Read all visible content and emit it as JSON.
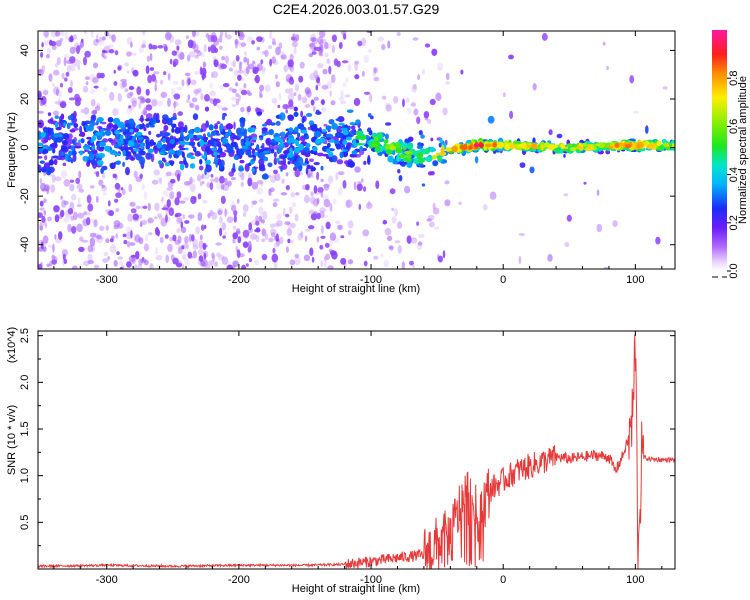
{
  "title": "C2E4.2026.003.01.57.G29",
  "colors": {
    "snr_line": "#e8393a",
    "axes": "#000000",
    "background": "#ffffff"
  },
  "chart_data": [
    {
      "type": "heatmap",
      "name": "spectrogram",
      "xlabel": "Height of straight line (km)",
      "ylabel": "Frequency (Hz)",
      "xlim": [
        -352,
        130
      ],
      "ylim": [
        -50,
        48
      ],
      "xticks": [
        -300,
        -200,
        -100,
        0,
        100
      ],
      "xtick_labels": [
        "-300",
        "-200",
        "-100",
        "0",
        "100"
      ],
      "yticks": [
        -40,
        -20,
        0,
        20,
        40
      ],
      "ytick_labels": [
        "-40",
        "-20",
        "0",
        "20",
        "40"
      ],
      "colorbar": {
        "label": "Normalized spectral amplitude",
        "range": [
          0,
          1
        ],
        "ticks": [
          0.0,
          0.2,
          0.4,
          0.6,
          0.8
        ],
        "tick_labels": [
          "0.0",
          "0.2",
          "0.4",
          "0.6",
          "0.8"
        ],
        "colormap": "rainbow (white-violet-blue-cyan-green-yellow-red-magenta)"
      },
      "signal_track": {
        "description": "Carrier frequency track vs height; noisy broadband below about -120 km, concentrating into a narrow high-amplitude line above about -45 km",
        "height_km": [
          -352,
          -300,
          -250,
          -200,
          -150,
          -120,
          -100,
          -80,
          -60,
          -50,
          -40,
          -30,
          -20,
          0,
          50,
          100,
          130
        ],
        "center_hz": [
          2,
          2,
          2,
          2,
          2,
          4,
          3,
          -1,
          -4,
          -2,
          0,
          0,
          1,
          1,
          0,
          1,
          1
        ],
        "peak_amplitude": [
          0.35,
          0.35,
          0.35,
          0.35,
          0.4,
          0.5,
          0.55,
          0.6,
          0.5,
          0.7,
          0.75,
          0.85,
          0.9,
          0.75,
          0.7,
          0.8,
          0.7
        ]
      }
    },
    {
      "type": "line",
      "name": "snr",
      "xlabel": "Height of straight line (km)",
      "ylabel": "SNR (10 * v/v)",
      "y_scale_label": "(x10^4)",
      "xlim": [
        -352,
        130
      ],
      "ylim": [
        0,
        2.55
      ],
      "xticks": [
        -300,
        -200,
        -100,
        0,
        100
      ],
      "xtick_labels": [
        "-300",
        "-200",
        "-100",
        "0",
        "100"
      ],
      "yticks": [
        0.5,
        1.0,
        1.5,
        2.0,
        2.5
      ],
      "ytick_labels": [
        "0.5",
        "1.0",
        "1.5",
        "2.0",
        "2.5"
      ],
      "series": [
        {
          "name": "SNR",
          "x": [
            -352,
            -300,
            -250,
            -200,
            -150,
            -120,
            -100,
            -80,
            -60,
            -50,
            -40,
            -35,
            -30,
            -25,
            -20,
            -15,
            -10,
            -5,
            0,
            10,
            20,
            30,
            40,
            50,
            60,
            70,
            80,
            85,
            90,
            95,
            98,
            100,
            102,
            105,
            110,
            120,
            130
          ],
          "y": [
            0.03,
            0.04,
            0.03,
            0.04,
            0.04,
            0.05,
            0.08,
            0.12,
            0.15,
            0.25,
            0.35,
            0.55,
            0.75,
            0.8,
            0.55,
            0.7,
            0.85,
            0.9,
            0.95,
            1.05,
            1.1,
            1.15,
            1.2,
            1.18,
            1.2,
            1.22,
            1.2,
            1.05,
            1.2,
            1.4,
            1.6,
            2.45,
            0.25,
            1.2,
            1.18,
            1.17,
            1.17
          ]
        }
      ]
    }
  ]
}
